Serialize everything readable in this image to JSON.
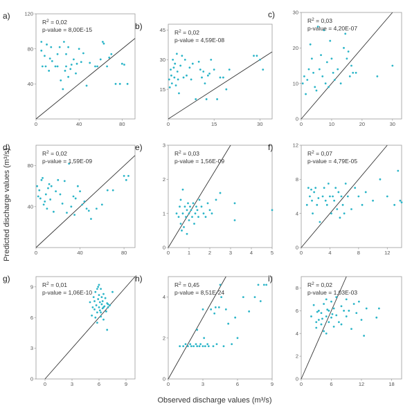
{
  "figure": {
    "xlabel": "Observed discharge values (m³/s)",
    "ylabel": "Predicted discharge values (m³/s)",
    "point_color": "#2bb5c8"
  },
  "chart_data": [
    {
      "type": "scatter",
      "label": "a)",
      "r2_label": "R",
      "r2_sup": "2",
      "r2_value": " = 0,02",
      "p_text": "p-value = 8,00E-15",
      "xlim": [
        0,
        92
      ],
      "ylim": [
        0,
        120
      ],
      "xticks": [
        0,
        40,
        80
      ],
      "yticks": [
        40,
        80,
        120
      ],
      "x": [
        5,
        5,
        6,
        8,
        9,
        10,
        12,
        13,
        14,
        15,
        18,
        20,
        20,
        22,
        23,
        25,
        26,
        27,
        28,
        28,
        30,
        30,
        32,
        33,
        35,
        37,
        38,
        40,
        42,
        44,
        47,
        50,
        55,
        57,
        60,
        62,
        63,
        66,
        68,
        70,
        74,
        78,
        80,
        82,
        85
      ],
      "y": [
        88,
        78,
        60,
        72,
        60,
        85,
        55,
        69,
        82,
        66,
        60,
        60,
        74,
        82,
        44,
        34,
        88,
        55,
        60,
        74,
        82,
        48,
        57,
        62,
        68,
        52,
        63,
        80,
        65,
        75,
        38,
        64,
        60,
        60,
        68,
        88,
        86,
        60,
        70,
        74,
        40,
        40,
        63,
        62,
        40
      ]
    },
    {
      "type": "scatter",
      "label": "b)",
      "r2_label": "R",
      "r2_sup": "2",
      "r2_value": " = 0,02",
      "p_text": "p-value = 4,59E-08",
      "xlim": [
        0,
        34
      ],
      "ylim": [
        0,
        48
      ],
      "xticks": [
        0,
        15,
        30
      ],
      "yticks": [
        15,
        30,
        45
      ],
      "x": [
        0.3,
        0.5,
        0.8,
        1.0,
        1.2,
        1.5,
        1.8,
        2.0,
        2.2,
        2.5,
        2.8,
        3.0,
        3.2,
        3.5,
        4.0,
        4.5,
        5.0,
        5.5,
        6.0,
        7.0,
        7.5,
        8.0,
        9.0,
        10.0,
        10.5,
        11.0,
        11.5,
        12.0,
        12.5,
        13.0,
        13.5,
        14.0,
        15.0,
        16.0,
        17.0,
        18.0,
        19.0,
        20.0,
        28.0,
        29.0,
        30.0,
        31.0
      ],
      "y": [
        20,
        16,
        25,
        22,
        18,
        30,
        26,
        21,
        28,
        17,
        33,
        24,
        20,
        13,
        27,
        32,
        21,
        30,
        22,
        26,
        20,
        28,
        10,
        29,
        25,
        21,
        24,
        18,
        10,
        22,
        23,
        30,
        25,
        10,
        21,
        21,
        15,
        25,
        32,
        32,
        30,
        25
      ]
    },
    {
      "type": "scatter",
      "label": "c)",
      "r2_label": "R",
      "r2_sup": "2",
      "r2_value": " = 0,03",
      "p_text": "p-value = 4,20E-07",
      "xlim": [
        0,
        33
      ],
      "ylim": [
        0,
        30
      ],
      "xticks": [
        0,
        10,
        20,
        30
      ],
      "yticks": [
        0,
        10,
        20,
        30
      ],
      "x": [
        0.5,
        1,
        1.5,
        2,
        2.5,
        3,
        3.5,
        4,
        4.5,
        5,
        5.5,
        6,
        6.5,
        7,
        7.5,
        8,
        8.5,
        9,
        9.5,
        10,
        10.5,
        11,
        12,
        13,
        14,
        14.5,
        15,
        15.5,
        16,
        16.5,
        17,
        18,
        25,
        30
      ],
      "y": [
        10,
        12,
        7,
        11,
        14,
        21,
        17,
        13,
        9,
        8,
        26,
        14,
        18,
        12,
        25,
        10,
        16,
        9,
        22,
        17,
        13,
        11,
        14,
        10,
        20,
        24,
        17,
        19,
        12,
        15,
        13,
        13,
        12,
        15
      ]
    },
    {
      "type": "scatter",
      "label": "d)",
      "r2_label": "R",
      "r2_sup": "2",
      "r2_value": " = 0,02",
      "p_text": "p-value = 1,59E-09",
      "xlim": [
        0,
        90
      ],
      "ylim": [
        0,
        100
      ],
      "xticks": [
        0,
        40,
        80
      ],
      "yticks": [
        40,
        80
      ],
      "x": [
        1,
        2,
        3,
        4,
        5,
        6,
        7,
        8,
        9,
        10,
        11,
        12,
        13,
        14,
        16,
        18,
        20,
        22,
        24,
        26,
        28,
        30,
        32,
        34,
        35,
        36,
        38,
        40,
        42,
        44,
        46,
        48,
        50,
        55,
        60,
        65,
        70,
        80,
        82,
        84
      ],
      "y": [
        60,
        50,
        56,
        48,
        66,
        68,
        42,
        45,
        52,
        38,
        58,
        62,
        47,
        60,
        35,
        55,
        66,
        52,
        43,
        65,
        34,
        82,
        40,
        50,
        32,
        48,
        60,
        55,
        42,
        45,
        38,
        36,
        28,
        38,
        42,
        56,
        56,
        70,
        66,
        70
      ]
    },
    {
      "type": "scatter",
      "label": "e)",
      "r2_label": "R",
      "r2_sup": "2",
      "r2_value": " = 0,03",
      "p_text": "p-value = 1,56E-09",
      "xlim": [
        0,
        5
      ],
      "ylim": [
        0,
        3
      ],
      "xticks": [
        0,
        1,
        2,
        3,
        4,
        5
      ],
      "yticks": [
        0,
        1,
        2,
        3
      ],
      "x": [
        0.4,
        0.5,
        0.55,
        0.6,
        0.6,
        0.65,
        0.7,
        0.7,
        0.75,
        0.8,
        0.85,
        0.9,
        0.9,
        0.95,
        1.0,
        1.0,
        1.05,
        1.1,
        1.15,
        1.2,
        1.25,
        1.3,
        1.35,
        1.4,
        1.45,
        1.5,
        1.6,
        1.7,
        1.8,
        1.9,
        2.0,
        2.1,
        2.3,
        2.5,
        3.2,
        3.2,
        5.0
      ],
      "y": [
        1.0,
        0.9,
        1.2,
        0.7,
        1.4,
        0.5,
        1.7,
        1.0,
        0.6,
        1.2,
        0.9,
        0.4,
        1.1,
        1.3,
        1.0,
        0.8,
        1.2,
        1.1,
        0.9,
        1.3,
        0.7,
        1.0,
        1.2,
        1.1,
        0.9,
        1.4,
        1.2,
        1.0,
        0.9,
        1.3,
        1.1,
        1.0,
        1.4,
        1.6,
        1.3,
        0.8,
        1.1
      ]
    },
    {
      "type": "scatter",
      "label": "f)",
      "r2_label": "R",
      "r2_sup": "2",
      "r2_value": " = 0,07",
      "p_text": "p-value = 4,79E-05",
      "xlim": [
        0,
        14
      ],
      "ylim": [
        0,
        12
      ],
      "xticks": [
        0,
        4,
        8,
        12
      ],
      "yticks": [
        0,
        4,
        8,
        12
      ],
      "x": [
        0.8,
        1,
        1.2,
        1.4,
        1.5,
        1.6,
        1.8,
        2,
        2.2,
        2.4,
        2.6,
        3,
        3.2,
        3.4,
        3.6,
        3.8,
        4,
        4.2,
        4.4,
        4.6,
        4.8,
        5,
        5.2,
        5.4,
        5.6,
        5.8,
        6,
        6.2,
        6.5,
        7,
        7.5,
        8,
        8.5,
        9,
        10,
        11,
        12,
        13,
        13.5,
        13.8,
        14
      ],
      "y": [
        5,
        7,
        6,
        6.8,
        5.5,
        4,
        6.5,
        7,
        5,
        5.8,
        3,
        6,
        7,
        5.5,
        5,
        7.5,
        6,
        4,
        6,
        5.5,
        7,
        4.5,
        6.5,
        3.5,
        6,
        5,
        4,
        7.5,
        6,
        4.5,
        7,
        6,
        5,
        6.5,
        5.5,
        8,
        6,
        5,
        9,
        5.5,
        5.3
      ]
    },
    {
      "type": "scatter",
      "label": "g)",
      "r2_label": "R",
      "r2_sup": "2",
      "r2_value": " = 0,01",
      "p_text": "p-value = 1,06E-10",
      "xlim": [
        -1,
        10
      ],
      "ylim": [
        0,
        10
      ],
      "xticks": [
        0,
        3,
        6,
        9
      ],
      "yticks": [
        0,
        3,
        6,
        9
      ],
      "x": [
        5.0,
        5.2,
        5.3,
        5.4,
        5.5,
        5.5,
        5.6,
        5.6,
        5.7,
        5.8,
        5.8,
        5.9,
        5.9,
        6.0,
        6.0,
        6.1,
        6.1,
        6.2,
        6.2,
        6.3,
        6.3,
        6.4,
        6.4,
        6.5,
        6.5,
        6.6,
        6.7,
        6.8,
        6.9,
        7.0,
        7.2,
        7.5,
        6.0,
        5.8,
        6.2,
        6.5,
        7.0,
        6.9
      ],
      "y": [
        7.5,
        6.2,
        7.0,
        8.0,
        6.8,
        7.6,
        8.5,
        6.0,
        7.2,
        8.8,
        6.5,
        7.8,
        9.0,
        7.0,
        8.2,
        6.7,
        7.5,
        8.8,
        6.1,
        7.3,
        8.0,
        6.9,
        7.6,
        8.3,
        5.8,
        7.1,
        7.9,
        6.6,
        7.4,
        7.0,
        7.2,
        8.5,
        9.2,
        5.5,
        6.5,
        7.0,
        7.3,
        4.8
      ]
    },
    {
      "type": "scatter",
      "label": "h)",
      "r2_label": "R",
      "r2_sup": "2",
      "r2_value": " = 0,45",
      "p_text": "p-value = 8,51E-24",
      "xlim": [
        0,
        9
      ],
      "ylim": [
        0,
        5
      ],
      "xticks": [
        0,
        3,
        6,
        9
      ],
      "yticks": [
        0,
        2,
        4
      ],
      "x": [
        1,
        1.3,
        1.5,
        1.7,
        1.9,
        2.0,
        2.2,
        2.4,
        2.5,
        2.7,
        2.8,
        3.0,
        3.0,
        3.2,
        3.4,
        3.5,
        3.7,
        3.9,
        4.0,
        4.2,
        4.4,
        4.5,
        4.6,
        4.8,
        5.0,
        5.2,
        5.5,
        5.8,
        6.0,
        6.5,
        7.0,
        7.5,
        7.8,
        8.0,
        8.3,
        8.5,
        2.5,
        3.1,
        4.1
      ],
      "y": [
        1.6,
        1.6,
        1.7,
        1.6,
        1.7,
        1.6,
        1.6,
        1.7,
        1.6,
        1.6,
        1.7,
        1.6,
        3.4,
        1.6,
        1.7,
        1.6,
        3.4,
        1.6,
        3.2,
        1.7,
        3.5,
        4.6,
        4.0,
        1.6,
        3.4,
        2.7,
        1.7,
        3.0,
        2.0,
        4.0,
        3.3,
        4.0,
        4.6,
        3.8,
        4.6,
        4.6,
        2.4,
        2.0,
        3.5
      ]
    },
    {
      "type": "scatter",
      "label": "i)",
      "r2_label": "R",
      "r2_sup": "2",
      "r2_value": " = 0,02",
      "p_text": "p-value = 1,03E-03",
      "xlim": [
        0,
        20
      ],
      "ylim": [
        0,
        9
      ],
      "xticks": [
        0,
        6,
        12,
        18
      ],
      "yticks": [
        0,
        2,
        4,
        6,
        8
      ],
      "x": [
        2,
        2.5,
        3,
        3,
        3.5,
        3.5,
        4,
        4,
        4.5,
        4.5,
        5,
        5,
        5,
        5.5,
        5.5,
        6,
        6,
        6.5,
        6.5,
        7,
        7,
        7.5,
        8,
        8,
        8.5,
        9,
        9,
        9.5,
        10,
        10.5,
        11,
        11.5,
        12,
        12.5,
        13,
        15,
        15.5,
        3.2,
        4.2,
        5.2,
        6.2
      ],
      "y": [
        5.5,
        6.5,
        5,
        4.5,
        6,
        5.2,
        4.8,
        5.8,
        6.6,
        4.2,
        5.5,
        7,
        4,
        6,
        5,
        6.8,
        5.4,
        4.6,
        6.2,
        5.6,
        7.2,
        5,
        6.4,
        4.8,
        6,
        5.5,
        7,
        6,
        4.4,
        6.6,
        5.8,
        6.8,
        5.2,
        3.8,
        6.2,
        5.4,
        6.2,
        5.9,
        5.3,
        6.1,
        5.7
      ]
    }
  ]
}
